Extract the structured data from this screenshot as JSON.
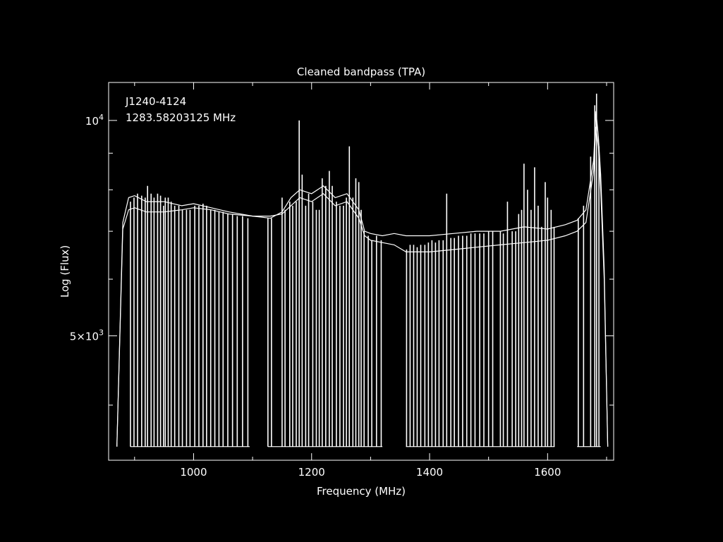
{
  "chart_data": {
    "type": "line",
    "title": "Cleaned bandpass (TPA)",
    "xlabel": "Frequency (MHz)",
    "ylabel": "Log (Flux)",
    "annotations": [
      "J1240-4124",
      "1283.58203125 MHz"
    ],
    "xlim": [
      856,
      1712
    ],
    "ylim": [
      3350,
      11300
    ],
    "yscale": "log",
    "x_ticks": [
      1000,
      1200,
      1400,
      1600
    ],
    "x_tick_labels": [
      "1000",
      "1200",
      "1400",
      "1600"
    ],
    "y_major_ticks": [
      {
        "value": 10000,
        "mantissa": "",
        "exponent": "4"
      },
      {
        "value": 5000,
        "mantissa": "5",
        "exponent": "3"
      }
    ],
    "y_minor_ticks": [
      4000,
      6000,
      7000,
      8000,
      9000
    ],
    "floor": 3500,
    "grid": false,
    "line_color": "#ffffff",
    "series": [
      {
        "points": [
          [
            870,
            3500
          ],
          [
            880,
            7050
          ],
          [
            890,
            7500
          ],
          [
            900,
            7550
          ],
          [
            920,
            7450
          ],
          [
            950,
            7450
          ],
          [
            980,
            7500
          ],
          [
            1000,
            7550
          ],
          [
            1030,
            7500
          ],
          [
            1060,
            7400
          ],
          [
            1100,
            7350
          ],
          [
            1130,
            7350
          ],
          [
            1150,
            7400
          ],
          [
            1165,
            7600
          ],
          [
            1180,
            7800
          ],
          [
            1200,
            7700
          ],
          [
            1220,
            7900
          ],
          [
            1240,
            7600
          ],
          [
            1260,
            7700
          ],
          [
            1280,
            7300
          ],
          [
            1290,
            6900
          ],
          [
            1300,
            6800
          ],
          [
            1320,
            6750
          ],
          [
            1340,
            6700
          ],
          [
            1360,
            6550
          ],
          [
            1400,
            6550
          ],
          [
            1440,
            6600
          ],
          [
            1480,
            6650
          ],
          [
            1520,
            6700
          ],
          [
            1560,
            6750
          ],
          [
            1600,
            6800
          ],
          [
            1630,
            6900
          ],
          [
            1650,
            7000
          ],
          [
            1665,
            7200
          ],
          [
            1678,
            8500
          ],
          [
            1682,
            9800
          ],
          [
            1686,
            9200
          ],
          [
            1690,
            8000
          ],
          [
            1696,
            6000
          ],
          [
            1702,
            3500
          ]
        ]
      },
      {
        "points": [
          [
            870,
            3500
          ],
          [
            880,
            7200
          ],
          [
            890,
            7800
          ],
          [
            900,
            7850
          ],
          [
            920,
            7700
          ],
          [
            950,
            7700
          ],
          [
            980,
            7600
          ],
          [
            1000,
            7650
          ],
          [
            1030,
            7550
          ],
          [
            1060,
            7450
          ],
          [
            1100,
            7350
          ],
          [
            1130,
            7300
          ],
          [
            1150,
            7450
          ],
          [
            1165,
            7800
          ],
          [
            1180,
            8000
          ],
          [
            1200,
            7900
          ],
          [
            1220,
            8100
          ],
          [
            1240,
            7800
          ],
          [
            1260,
            7900
          ],
          [
            1280,
            7500
          ],
          [
            1290,
            7000
          ],
          [
            1300,
            6950
          ],
          [
            1320,
            6900
          ],
          [
            1340,
            6950
          ],
          [
            1360,
            6900
          ],
          [
            1400,
            6900
          ],
          [
            1440,
            6950
          ],
          [
            1480,
            7000
          ],
          [
            1520,
            7000
          ],
          [
            1560,
            7100
          ],
          [
            1600,
            7050
          ],
          [
            1630,
            7150
          ],
          [
            1650,
            7250
          ],
          [
            1665,
            7500
          ],
          [
            1678,
            8800
          ],
          [
            1682,
            10300
          ],
          [
            1686,
            9500
          ],
          [
            1690,
            8400
          ],
          [
            1696,
            6200
          ],
          [
            1702,
            3500
          ]
        ]
      }
    ],
    "rfi_spikes": [
      {
        "x": 893,
        "y": 7700
      },
      {
        "x": 899,
        "y": 7800
      },
      {
        "x": 905,
        "y": 7900
      },
      {
        "x": 912,
        "y": 7850
      },
      {
        "x": 918,
        "y": 7800
      },
      {
        "x": 922,
        "y": 8100
      },
      {
        "x": 928,
        "y": 7900
      },
      {
        "x": 933,
        "y": 7800
      },
      {
        "x": 939,
        "y": 7900
      },
      {
        "x": 944,
        "y": 7850
      },
      {
        "x": 949,
        "y": 7600
      },
      {
        "x": 952,
        "y": 7800
      },
      {
        "x": 957,
        "y": 7800
      },
      {
        "x": 962,
        "y": 7700
      },
      {
        "x": 968,
        "y": 7600
      },
      {
        "x": 975,
        "y": 7600
      },
      {
        "x": 981,
        "y": 7500
      },
      {
        "x": 988,
        "y": 7500
      },
      {
        "x": 994,
        "y": 7500
      },
      {
        "x": 1002,
        "y": 7600
      },
      {
        "x": 1009,
        "y": 7600
      },
      {
        "x": 1016,
        "y": 7650
      },
      {
        "x": 1022,
        "y": 7600
      },
      {
        "x": 1029,
        "y": 7500
      },
      {
        "x": 1036,
        "y": 7500
      },
      {
        "x": 1043,
        "y": 7450
      },
      {
        "x": 1050,
        "y": 7450
      },
      {
        "x": 1058,
        "y": 7400
      },
      {
        "x": 1066,
        "y": 7400
      },
      {
        "x": 1074,
        "y": 7350
      },
      {
        "x": 1083,
        "y": 7350
      },
      {
        "x": 1092,
        "y": 7300
      },
      {
        "x": 1126,
        "y": 7300
      },
      {
        "x": 1132,
        "y": 7300
      },
      {
        "x": 1150,
        "y": 7800
      },
      {
        "x": 1155,
        "y": 7500
      },
      {
        "x": 1163,
        "y": 7700
      },
      {
        "x": 1168,
        "y": 7600
      },
      {
        "x": 1174,
        "y": 7700
      },
      {
        "x": 1179,
        "y": 10000
      },
      {
        "x": 1184,
        "y": 8400
      },
      {
        "x": 1190,
        "y": 7600
      },
      {
        "x": 1195,
        "y": 7900
      },
      {
        "x": 1202,
        "y": 7700
      },
      {
        "x": 1208,
        "y": 7500
      },
      {
        "x": 1213,
        "y": 7500
      },
      {
        "x": 1218,
        "y": 8300
      },
      {
        "x": 1224,
        "y": 8100
      },
      {
        "x": 1230,
        "y": 8500
      },
      {
        "x": 1235,
        "y": 8100
      },
      {
        "x": 1242,
        "y": 7700
      },
      {
        "x": 1248,
        "y": 7600
      },
      {
        "x": 1254,
        "y": 7600
      },
      {
        "x": 1259,
        "y": 7800
      },
      {
        "x": 1264,
        "y": 9200
      },
      {
        "x": 1270,
        "y": 7800
      },
      {
        "x": 1275,
        "y": 8300
      },
      {
        "x": 1280,
        "y": 8200
      },
      {
        "x": 1284,
        "y": 7500
      },
      {
        "x": 1289,
        "y": 7000
      },
      {
        "x": 1296,
        "y": 6900
      },
      {
        "x": 1302,
        "y": 6800
      },
      {
        "x": 1310,
        "y": 6900
      },
      {
        "x": 1318,
        "y": 6800
      },
      {
        "x": 1361,
        "y": 6600
      },
      {
        "x": 1367,
        "y": 6700
      },
      {
        "x": 1373,
        "y": 6700
      },
      {
        "x": 1379,
        "y": 6650
      },
      {
        "x": 1385,
        "y": 6700
      },
      {
        "x": 1392,
        "y": 6700
      },
      {
        "x": 1398,
        "y": 6750
      },
      {
        "x": 1404,
        "y": 6800
      },
      {
        "x": 1410,
        "y": 6750
      },
      {
        "x": 1416,
        "y": 6800
      },
      {
        "x": 1423,
        "y": 6800
      },
      {
        "x": 1429,
        "y": 7900
      },
      {
        "x": 1436,
        "y": 6850
      },
      {
        "x": 1442,
        "y": 6850
      },
      {
        "x": 1449,
        "y": 6900
      },
      {
        "x": 1456,
        "y": 6900
      },
      {
        "x": 1463,
        "y": 6900
      },
      {
        "x": 1470,
        "y": 6950
      },
      {
        "x": 1477,
        "y": 6950
      },
      {
        "x": 1485,
        "y": 6950
      },
      {
        "x": 1492,
        "y": 6950
      },
      {
        "x": 1500,
        "y": 7000
      },
      {
        "x": 1507,
        "y": 7000
      },
      {
        "x": 1520,
        "y": 7000
      },
      {
        "x": 1525,
        "y": 6950
      },
      {
        "x": 1532,
        "y": 7700
      },
      {
        "x": 1540,
        "y": 7000
      },
      {
        "x": 1546,
        "y": 7000
      },
      {
        "x": 1551,
        "y": 7400
      },
      {
        "x": 1556,
        "y": 7500
      },
      {
        "x": 1560,
        "y": 8700
      },
      {
        "x": 1566,
        "y": 8000
      },
      {
        "x": 1572,
        "y": 7500
      },
      {
        "x": 1578,
        "y": 8600
      },
      {
        "x": 1584,
        "y": 7600
      },
      {
        "x": 1590,
        "y": 7100
      },
      {
        "x": 1596,
        "y": 8200
      },
      {
        "x": 1600,
        "y": 7800
      },
      {
        "x": 1606,
        "y": 7500
      },
      {
        "x": 1611,
        "y": 7100
      },
      {
        "x": 1652,
        "y": 7300
      },
      {
        "x": 1661,
        "y": 7600
      },
      {
        "x": 1673,
        "y": 8900
      },
      {
        "x": 1680,
        "y": 10500
      },
      {
        "x": 1683,
        "y": 10900
      },
      {
        "x": 1687,
        "y": 9200
      }
    ]
  }
}
